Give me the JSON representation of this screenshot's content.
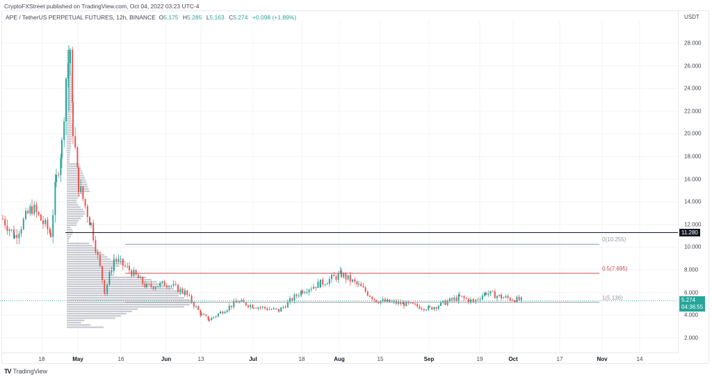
{
  "publisher_line": "CryptoFXStreet published on TradingView.com, Oct 04, 2022 03:23 UTC-4",
  "legend": {
    "symbol": "APE / TetherUS PERPETUAL FUTURES, 12h, BINANCE",
    "open_label": "O",
    "open": "5.175",
    "high_label": "H",
    "high": "5.285",
    "low_label": "L",
    "low": "5.163",
    "close_label": "C",
    "close": "5.274",
    "change": "+0.098 (+1.89%)"
  },
  "price_axis": {
    "unit": "USDT",
    "ticks": [
      "28.000",
      "26.000",
      "24.000",
      "22.000",
      "20.000",
      "18.000",
      "16.000",
      "14.000",
      "12.000",
      "10.000",
      "8.000",
      "6.000",
      "4.000",
      "2.000"
    ]
  },
  "time_axis": {
    "ticks": [
      {
        "label": "18",
        "major": false
      },
      {
        "label": "May",
        "major": true
      },
      {
        "label": "16",
        "major": false
      },
      {
        "label": "Jun",
        "major": true
      },
      {
        "label": "13",
        "major": false
      },
      {
        "label": "Jul",
        "major": true
      },
      {
        "label": "18",
        "major": false
      },
      {
        "label": "Aug",
        "major": true
      },
      {
        "label": "15",
        "major": false
      },
      {
        "label": "Sep",
        "major": true
      },
      {
        "label": "19",
        "major": false
      },
      {
        "label": "Oct",
        "major": true
      },
      {
        "label": "17",
        "major": false
      },
      {
        "label": "Nov",
        "major": true
      },
      {
        "label": "14",
        "major": false
      }
    ]
  },
  "horizontal_line": {
    "label": "11.280",
    "value": 11.28,
    "color": "#131722"
  },
  "last_price": {
    "label": "5.274",
    "countdown": "04:36:55",
    "color": "#26a69a"
  },
  "fib_levels": [
    {
      "label": "0(10.255)",
      "value": 10.255,
      "color": "#9598a1"
    },
    {
      "label": "0.5(7.695)",
      "value": 7.695,
      "color": "#c74b4b"
    },
    {
      "label": "1(5.136)",
      "value": 5.136,
      "color": "#9598a1"
    }
  ],
  "brand": {
    "logo": "TV",
    "name": "TradingView"
  },
  "colors": {
    "up": "#26a69a",
    "down": "#ef5350",
    "grid": "#f0f3fa",
    "volume_profile": "#c8cad0"
  },
  "chart_data": {
    "type": "candlestick",
    "title": "APE / TetherUS PERPETUAL FUTURES, 12h, BINANCE",
    "ylabel": "USDT",
    "ylim": [
      1.0,
      29.0
    ],
    "grid": true,
    "x_ticks": [
      "18",
      "May",
      "16",
      "Jun",
      "13",
      "Jul",
      "18",
      "Aug",
      "15",
      "Sep",
      "19",
      "Oct",
      "17",
      "Nov",
      "14"
    ],
    "y_ticks": [
      2,
      4,
      6,
      8,
      10,
      12,
      14,
      16,
      18,
      20,
      22,
      24,
      26,
      28
    ],
    "approx_close_path": [
      {
        "date": "Apr 12",
        "close": 12.5
      },
      {
        "date": "Apr 15",
        "close": 11.0
      },
      {
        "date": "Apr 20",
        "close": 13.5
      },
      {
        "date": "Apr 24",
        "close": 11.2
      },
      {
        "date": "Apr 26",
        "close": 16.0
      },
      {
        "date": "Apr 28",
        "close": 19.0
      },
      {
        "date": "Apr 30",
        "close": 25.0
      },
      {
        "date": "May 1 (peak high)",
        "close": 27.5
      },
      {
        "date": "May 2",
        "close": 20.5
      },
      {
        "date": "May 5",
        "close": 15.5
      },
      {
        "date": "May 8",
        "close": 12.0
      },
      {
        "date": "May 11 (low)",
        "close": 6.0
      },
      {
        "date": "May 14",
        "close": 9.0
      },
      {
        "date": "May 20",
        "close": 8.0
      },
      {
        "date": "May 26",
        "close": 6.5
      },
      {
        "date": "Jun 1",
        "close": 6.8
      },
      {
        "date": "Jun 8",
        "close": 6.0
      },
      {
        "date": "Jun 13",
        "close": 4.0
      },
      {
        "date": "Jun 18",
        "close": 3.6
      },
      {
        "date": "Jun 28",
        "close": 5.2
      },
      {
        "date": "Jul 8",
        "close": 4.8
      },
      {
        "date": "Jul 14",
        "close": 4.4
      },
      {
        "date": "Jul 20",
        "close": 6.2
      },
      {
        "date": "Jul 28",
        "close": 6.8
      },
      {
        "date": "Aug 5 (high)",
        "close": 7.6
      },
      {
        "date": "Aug 14",
        "close": 6.6
      },
      {
        "date": "Aug 20",
        "close": 5.3
      },
      {
        "date": "Aug 30",
        "close": 5.0
      },
      {
        "date": "Sep 7",
        "close": 4.6
      },
      {
        "date": "Sep 13",
        "close": 5.6
      },
      {
        "date": "Sep 19",
        "close": 5.2
      },
      {
        "date": "Sep 22",
        "close": 6.0
      },
      {
        "date": "Sep 28",
        "close": 5.6
      },
      {
        "date": "Oct 3",
        "close": 5.274
      }
    ],
    "annotations": [
      {
        "type": "hline",
        "value": 11.28,
        "label": "11.280"
      },
      {
        "type": "fib",
        "level": 0,
        "value": 10.255
      },
      {
        "type": "fib",
        "level": 0.5,
        "value": 7.695
      },
      {
        "type": "fib",
        "level": 1,
        "value": 5.136
      },
      {
        "type": "volume_profile",
        "anchor": "May 1",
        "poc_approx": 5.2
      }
    ]
  }
}
